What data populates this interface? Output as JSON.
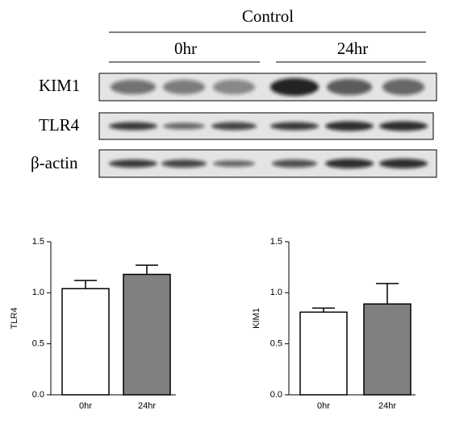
{
  "blot": {
    "condition": "Control",
    "timepoints": [
      "0hr",
      "24hr"
    ],
    "rows": [
      "KIM1",
      "TLR4",
      "β-actin"
    ]
  },
  "chart_data": [
    {
      "type": "bar",
      "ylabel": "TLR4",
      "categories": [
        "0hr",
        "24hr"
      ],
      "values": [
        1.04,
        1.18
      ],
      "errors": [
        0.08,
        0.09
      ],
      "colors": [
        "#ffffff",
        "#808080"
      ],
      "ylim": [
        0,
        1.5
      ],
      "yticks": [
        {
          "value": 0,
          "label": "0.0"
        },
        0.5,
        {
          "value": 1,
          "label": "1.0"
        },
        1.5
      ]
    },
    {
      "type": "bar",
      "ylabel": "KIM1",
      "categories": [
        "0hr",
        "24hr"
      ],
      "values": [
        0.81,
        0.89
      ],
      "errors": [
        0.04,
        0.2
      ],
      "colors": [
        "#ffffff",
        "#808080"
      ],
      "ylim": [
        0,
        1.5
      ],
      "yticks": [
        {
          "value": 0,
          "label": "0.0"
        },
        0.5,
        {
          "value": 1,
          "label": "1.0"
        },
        1.5
      ]
    }
  ]
}
